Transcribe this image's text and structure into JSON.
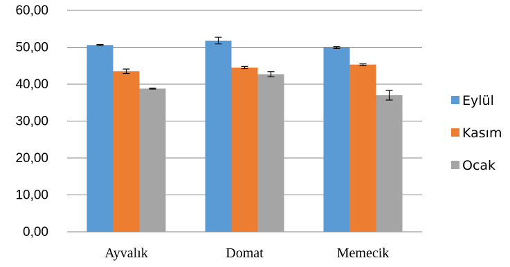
{
  "chart_data": {
    "type": "bar",
    "categories": [
      "Ayvalık",
      "Domat",
      "Memecik"
    ],
    "series": [
      {
        "name": "Eylül",
        "color": "#5B9BD5",
        "values": [
          50.6,
          51.8,
          49.9
        ],
        "errors": [
          0.15,
          0.9,
          0.25
        ]
      },
      {
        "name": "Kasım",
        "color": "#ED7D31",
        "values": [
          43.5,
          44.5,
          45.3
        ],
        "errors": [
          0.6,
          0.3,
          0.2
        ]
      },
      {
        "name": "Ocak",
        "color": "#A5A5A5",
        "values": [
          38.8,
          42.7,
          37.0
        ],
        "errors": [
          0.12,
          0.7,
          1.3
        ]
      }
    ],
    "ylim": [
      0,
      60
    ],
    "yticks": [
      "0,00",
      "10,00",
      "20,00",
      "30,00",
      "40,00",
      "50,00",
      "60,00"
    ],
    "ytick_values": [
      0,
      10,
      20,
      30,
      40,
      50,
      60
    ],
    "grid": true,
    "legend": "right",
    "title": "",
    "xlabel": "",
    "ylabel": ""
  }
}
